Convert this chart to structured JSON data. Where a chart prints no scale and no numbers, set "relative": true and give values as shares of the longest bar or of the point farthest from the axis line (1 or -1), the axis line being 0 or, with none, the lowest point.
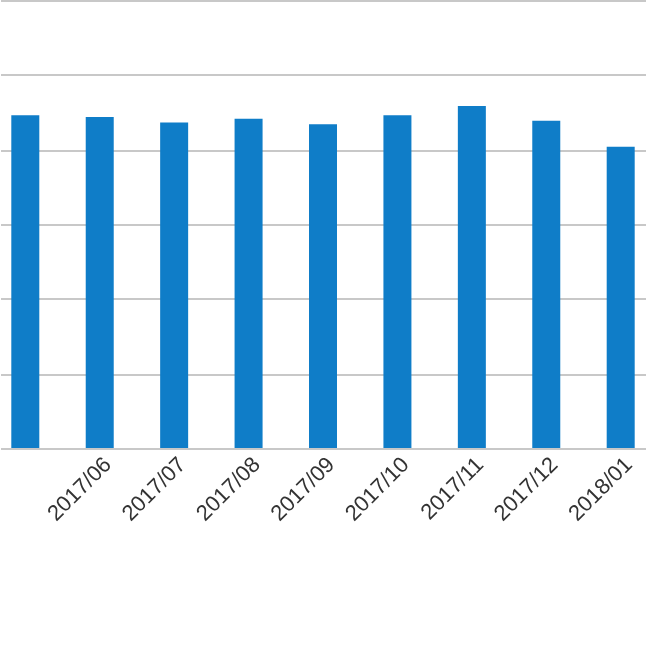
{
  "chart_data": {
    "type": "bar",
    "relative": true,
    "categories": [
      null,
      "2017/06",
      "2017/07",
      "2017/08",
      "2017/09",
      "2017/10",
      "2017/11",
      "2017/12",
      "2018/01"
    ],
    "values": [
      0.973,
      0.968,
      0.952,
      0.963,
      0.947,
      0.973,
      1,
      0.957,
      0.881
    ],
    "color": "#0f7dc8",
    "grid": "y"
  }
}
